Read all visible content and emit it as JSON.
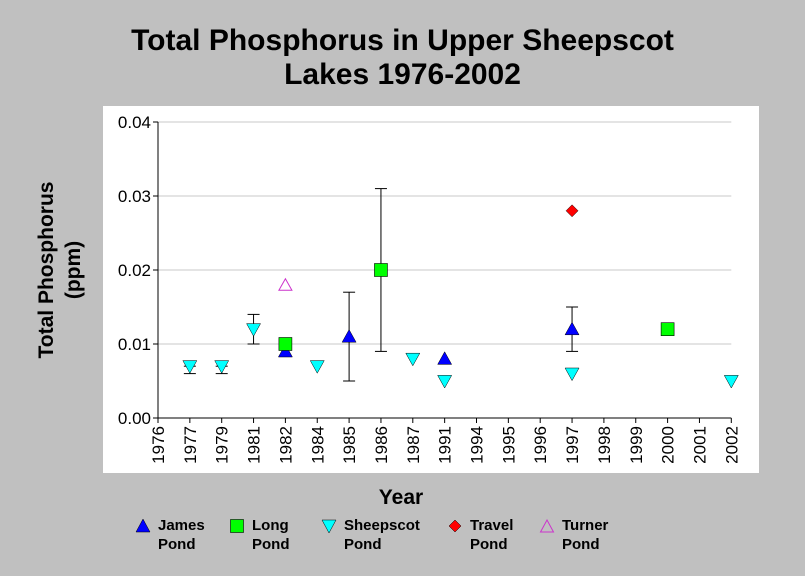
{
  "chart_data": {
    "type": "scatter",
    "title_lines": [
      "Total Phosphorus in Upper Sheepscot",
      "Lakes 1976-2002"
    ],
    "xlabel": "Year",
    "ylabel_lines": [
      "Total Phosphorus",
      "(ppm)"
    ],
    "ylim": [
      0,
      0.04
    ],
    "yticks": [
      "0.00",
      "0.01",
      "0.02",
      "0.03",
      "0.04"
    ],
    "categories": [
      "1976",
      "1977",
      "1979",
      "1981",
      "1982",
      "1984",
      "1985",
      "1986",
      "1987",
      "1991",
      "1994",
      "1995",
      "1996",
      "1997",
      "1998",
      "1999",
      "2000",
      "2001",
      "2002"
    ],
    "grid": true,
    "legend_position": "bottom",
    "series": [
      {
        "name_lines": [
          "James",
          "Pond"
        ],
        "marker": "triangle-up",
        "color": "#0000ff",
        "points": [
          {
            "x": "1982",
            "y": 0.009
          },
          {
            "x": "1985",
            "y": 0.011,
            "err": [
              0.005,
              0.017
            ]
          },
          {
            "x": "1991",
            "y": 0.008
          },
          {
            "x": "1997",
            "y": 0.012,
            "err": [
              0.009,
              0.015
            ]
          }
        ]
      },
      {
        "name_lines": [
          "Long",
          "Pond"
        ],
        "marker": "square",
        "color": "#00ff00",
        "points": [
          {
            "x": "1982",
            "y": 0.01
          },
          {
            "x": "1986",
            "y": 0.02,
            "err": [
              0.009,
              0.031
            ]
          },
          {
            "x": "2000",
            "y": 0.012
          }
        ]
      },
      {
        "name_lines": [
          "Sheepscot",
          "Pond"
        ],
        "marker": "triangle-down",
        "color": "#00ffff",
        "points": [
          {
            "x": "1977",
            "y": 0.007,
            "err": [
              0.006,
              0.007
            ]
          },
          {
            "x": "1979",
            "y": 0.007,
            "err": [
              0.006,
              0.007
            ]
          },
          {
            "x": "1981",
            "y": 0.012,
            "err": [
              0.01,
              0.014
            ]
          },
          {
            "x": "1984",
            "y": 0.007
          },
          {
            "x": "1987",
            "y": 0.008
          },
          {
            "x": "1991",
            "y": 0.005
          },
          {
            "x": "1997",
            "y": 0.006
          },
          {
            "x": "2002",
            "y": 0.005
          }
        ]
      },
      {
        "name_lines": [
          "Travel",
          "Pond"
        ],
        "marker": "diamond",
        "color": "#ff0000",
        "points": [
          {
            "x": "1997",
            "y": 0.028
          }
        ]
      },
      {
        "name_lines": [
          "Turner",
          "Pond"
        ],
        "marker": "triangle-up-open",
        "color": "#cc33cc",
        "points": [
          {
            "x": "1982",
            "y": 0.018
          }
        ]
      }
    ]
  }
}
